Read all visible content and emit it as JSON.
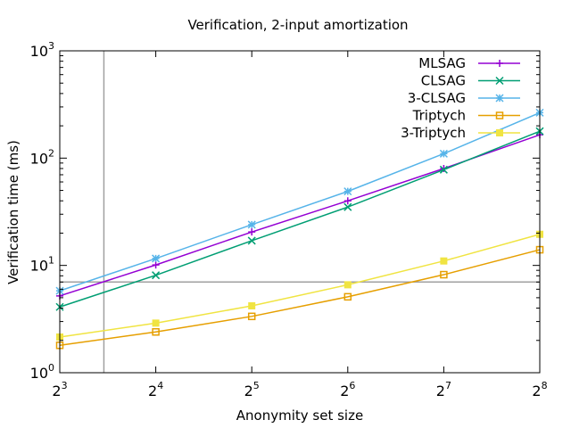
{
  "chart_data": {
    "type": "line",
    "title": "Verification, 2-input amortization",
    "xlabel": "Anonymity set size",
    "ylabel": "Verification time (ms)",
    "x_scale": "log2",
    "y_scale": "log10",
    "x": [
      8,
      16,
      32,
      64,
      128,
      256
    ],
    "xlim": [
      8,
      256
    ],
    "ylim": [
      1,
      1000
    ],
    "x_ticks": [
      {
        "base": "2",
        "exp": "3",
        "value": 8
      },
      {
        "base": "2",
        "exp": "4",
        "value": 16
      },
      {
        "base": "2",
        "exp": "5",
        "value": 32
      },
      {
        "base": "2",
        "exp": "6",
        "value": 64
      },
      {
        "base": "2",
        "exp": "7",
        "value": 128
      },
      {
        "base": "2",
        "exp": "8",
        "value": 256
      }
    ],
    "y_ticks": [
      {
        "base": "10",
        "exp": "0",
        "value": 1
      },
      {
        "base": "10",
        "exp": "1",
        "value": 10
      },
      {
        "base": "10",
        "exp": "2",
        "value": 100
      },
      {
        "base": "10",
        "exp": "3",
        "value": 1000
      }
    ],
    "reference_lines": {
      "x": 11,
      "y": 7
    },
    "reference_color": "#a0a0a0",
    "legend_position": "top-right",
    "series": [
      {
        "name": "MLSAG",
        "color": "#9400d3",
        "marker": "plus",
        "values": [
          5.2,
          10.1,
          20.5,
          40,
          80,
          165
        ]
      },
      {
        "name": "CLSAG",
        "color": "#009e73",
        "marker": "cross",
        "values": [
          4.1,
          8.1,
          17,
          35,
          78,
          178
        ]
      },
      {
        "name": "3-CLSAG",
        "color": "#56b4e9",
        "marker": "star",
        "values": [
          5.8,
          11.6,
          24,
          49,
          110,
          265
        ]
      },
      {
        "name": "Triptych",
        "color": "#e69f00",
        "marker": "square",
        "values": [
          1.8,
          2.4,
          3.35,
          5.1,
          8.2,
          14
        ]
      },
      {
        "name": "3-Triptych",
        "color": "#f0e442",
        "marker": "filled-square",
        "values": [
          2.15,
          2.9,
          4.2,
          6.6,
          11,
          19.5
        ]
      }
    ]
  }
}
